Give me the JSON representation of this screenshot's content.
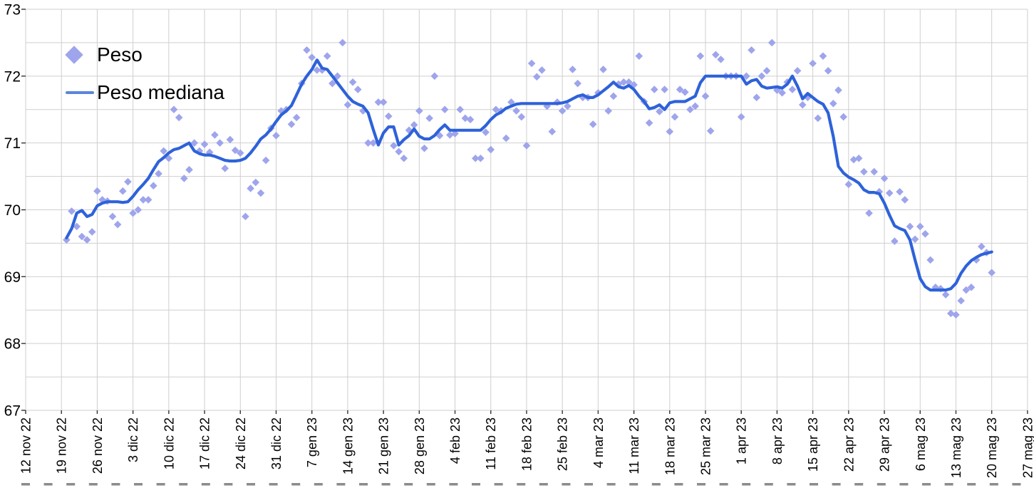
{
  "legend": {
    "peso_label": "Peso",
    "peso_mediana_label": "Peso mediana"
  },
  "chart_data": {
    "type": "scatter",
    "title": "",
    "legend_position": "top-left-inside",
    "grid": true,
    "grid_color": "#cfcfcf",
    "tick_color": "#333333",
    "text_color": "#000000",
    "background": "#ffffff",
    "x_axis": {
      "label": "",
      "tick_labels": [
        "12 nov 22",
        "19 nov 22",
        "26 nov 22",
        "3 dic 22",
        "10 dic 22",
        "17 dic 22",
        "24 dic 22",
        "31 dic 22",
        "7 gen 23",
        "14 gen 23",
        "21 gen 23",
        "28 gen 23",
        "4 feb 23",
        "11 feb 23",
        "18 feb 23",
        "25 feb 23",
        "4 mar 23",
        "11 mar 23",
        "18 mar 23",
        "25 mar 23",
        "1 apr 23",
        "8 apr 23",
        "15 apr 23",
        "22 apr 23",
        "29 apr 23",
        "6 mag 23",
        "13 mag 23",
        "20 mag 23",
        "27 mag 23"
      ],
      "days_per_tick": 7
    },
    "y_axis": {
      "label": "",
      "tick_labels": [
        "73",
        "72",
        "71",
        "70",
        "69",
        "68",
        "67"
      ],
      "min": 67,
      "max": 73,
      "gridline_step": 0.5
    },
    "series": [
      {
        "name": "Peso",
        "type": "scatter",
        "marker": "diamond",
        "color": "#9ea5ec",
        "start_day": 8,
        "step_days": 1,
        "values": [
          69.55,
          69.98,
          69.75,
          69.6,
          69.55,
          69.67,
          70.28,
          70.15,
          70.13,
          69.9,
          69.78,
          70.28,
          70.42,
          69.95,
          70.0,
          70.15,
          70.15,
          70.36,
          70.54,
          70.88,
          70.77,
          71.5,
          71.38,
          70.47,
          70.6,
          71.0,
          70.88,
          70.98,
          70.86,
          71.12,
          71.0,
          70.62,
          71.05,
          70.89,
          70.85,
          69.9,
          70.32,
          70.41,
          70.25,
          70.74,
          71.22,
          71.11,
          71.48,
          71.5,
          71.28,
          71.38,
          71.89,
          72.39,
          72.28,
          72.09,
          72.09,
          72.3,
          71.89,
          72.0,
          72.5,
          71.57,
          71.91,
          71.8,
          71.48,
          71.0,
          71.0,
          71.61,
          71.61,
          71.4,
          70.96,
          70.87,
          70.77,
          71.19,
          71.27,
          71.48,
          70.92,
          71.37,
          72.0,
          71.11,
          71.5,
          71.12,
          71.14,
          71.5,
          71.37,
          71.35,
          70.77,
          70.77,
          71.16,
          70.9,
          71.5,
          71.48,
          71.07,
          71.61,
          71.48,
          71.39,
          70.96,
          72.19,
          71.99,
          72.09,
          71.55,
          71.17,
          71.61,
          71.48,
          71.55,
          72.1,
          71.89,
          71.68,
          71.68,
          71.28,
          71.75,
          72.1,
          71.48,
          71.7,
          71.88,
          71.91,
          71.91,
          71.87,
          72.3,
          71.62,
          71.3,
          71.8,
          71.47,
          71.8,
          71.17,
          71.39,
          71.8,
          71.76,
          71.5,
          71.55,
          72.3,
          71.7,
          71.18,
          72.32,
          72.25,
          72.0,
          72.0,
          72.0,
          71.39,
          72.0,
          72.39,
          71.68,
          72.0,
          72.08,
          72.5,
          71.79,
          71.75,
          71.91,
          71.8,
          72.08,
          71.57,
          71.68,
          72.19,
          71.37,
          72.3,
          72.08,
          71.59,
          71.79,
          71.39,
          70.38,
          70.75,
          70.77,
          70.57,
          69.95,
          70.57,
          70.27,
          70.47,
          70.25,
          69.53,
          70.27,
          70.15,
          69.75,
          69.56,
          69.75,
          69.64,
          69.25,
          68.84,
          68.82,
          68.73,
          68.45,
          68.43,
          68.64,
          68.8,
          68.84,
          69.25,
          69.45,
          69.36,
          69.06
        ]
      },
      {
        "name": "Peso mediana",
        "type": "line",
        "color": "#2e62d9",
        "start_day": 8,
        "step_days": 1,
        "values": [
          69.58,
          69.72,
          69.95,
          69.99,
          69.9,
          69.93,
          70.06,
          70.1,
          70.12,
          70.12,
          70.12,
          70.11,
          70.12,
          70.2,
          70.3,
          70.38,
          70.47,
          70.6,
          70.72,
          70.78,
          70.85,
          70.9,
          70.92,
          70.96,
          71.0,
          70.88,
          70.84,
          70.82,
          70.82,
          70.8,
          70.77,
          70.74,
          70.73,
          70.73,
          70.74,
          70.77,
          70.85,
          70.95,
          71.06,
          71.12,
          71.21,
          71.32,
          71.42,
          71.48,
          71.56,
          71.72,
          71.88,
          72.0,
          72.1,
          72.24,
          72.12,
          72.1,
          72.0,
          71.9,
          71.8,
          71.7,
          71.62,
          71.58,
          71.55,
          71.45,
          71.2,
          70.97,
          71.15,
          71.24,
          71.24,
          70.97,
          71.05,
          71.11,
          71.21,
          71.1,
          71.06,
          71.06,
          71.11,
          71.2,
          71.27,
          71.19,
          71.19,
          71.19,
          71.19,
          71.19,
          71.19,
          71.19,
          71.26,
          71.35,
          71.42,
          71.46,
          71.52,
          71.55,
          71.58,
          71.59,
          71.59,
          71.59,
          71.59,
          71.59,
          71.59,
          71.59,
          71.59,
          71.6,
          71.62,
          71.66,
          71.7,
          71.72,
          71.68,
          71.68,
          71.72,
          71.78,
          71.84,
          71.91,
          71.84,
          71.82,
          71.86,
          71.8,
          71.7,
          71.62,
          71.51,
          71.53,
          71.57,
          71.5,
          71.6,
          71.62,
          71.62,
          71.62,
          71.66,
          71.7,
          71.9,
          72.0,
          72.0,
          72.0,
          72.0,
          72.0,
          72.0,
          72.0,
          72.0,
          71.88,
          71.93,
          71.95,
          71.85,
          71.82,
          71.83,
          71.84,
          71.82,
          71.88,
          72.0,
          71.85,
          71.66,
          71.74,
          71.68,
          71.62,
          71.58,
          71.45,
          71.1,
          70.65,
          70.55,
          70.49,
          70.45,
          70.4,
          70.3,
          70.26,
          70.26,
          70.24,
          70.1,
          69.92,
          69.76,
          69.72,
          69.69,
          69.55,
          69.25,
          68.97,
          68.85,
          68.8,
          68.8,
          68.8,
          68.8,
          68.82,
          68.9,
          69.05,
          69.16,
          69.24,
          69.29,
          69.33,
          69.35,
          69.37
        ]
      }
    ]
  }
}
